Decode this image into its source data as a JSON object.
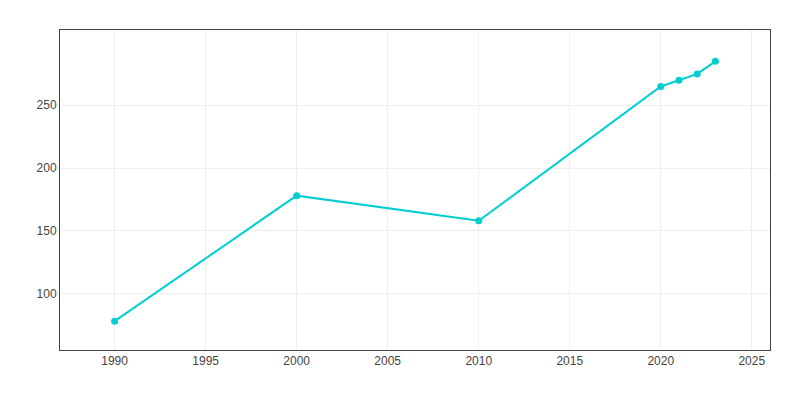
{
  "chart_data": {
    "type": "line",
    "x": [
      1990,
      2000,
      2010,
      2020,
      2021,
      2022,
      2023
    ],
    "values": [
      78,
      178,
      158,
      265,
      270,
      275,
      285
    ],
    "color": "#00CED1",
    "marker": "circle",
    "xlim": [
      1987,
      2026
    ],
    "ylim": [
      55,
      310
    ],
    "xticks": [
      1990,
      1995,
      2000,
      2005,
      2010,
      2015,
      2020,
      2025
    ],
    "yticks": [
      100,
      150,
      200,
      250
    ],
    "grid": true
  }
}
